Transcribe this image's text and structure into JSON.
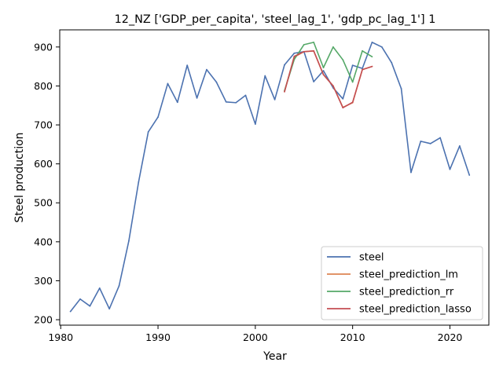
{
  "chart_data": {
    "type": "line",
    "title": "12_NZ ['GDP_per_capita', 'steel_lag_1', 'gdp_pc_lag_1'] 1",
    "xlabel": "Year",
    "ylabel": "Steel production",
    "xlim": [
      1979.9,
      2024.0
    ],
    "ylim": [
      186,
      944
    ],
    "xticks": [
      1980,
      1990,
      2000,
      2010,
      2020
    ],
    "yticks": [
      200,
      300,
      400,
      500,
      600,
      700,
      800,
      900
    ],
    "grid": false,
    "legend_position": "lower-right",
    "series": [
      {
        "name": "steel",
        "color": "#4c72b0",
        "x": [
          1981,
          1982,
          1983,
          1984,
          1985,
          1986,
          1987,
          1988,
          1989,
          1990,
          1991,
          1992,
          1993,
          1994,
          1995,
          1996,
          1997,
          1998,
          1999,
          2000,
          2001,
          2002,
          2003,
          2004,
          2005,
          2006,
          2007,
          2008,
          2009,
          2010,
          2011,
          2012,
          2013,
          2014,
          2015,
          2016,
          2017,
          2018,
          2019,
          2020,
          2021,
          2022
        ],
        "y": [
          221,
          253,
          235,
          281,
          228,
          287,
          402,
          553,
          682,
          720,
          806,
          758,
          853,
          769,
          842,
          810,
          759,
          757,
          776,
          702,
          826,
          765,
          854,
          884,
          888,
          811,
          839,
          795,
          767,
          853,
          845,
          912,
          900,
          860,
          793,
          578,
          658,
          652,
          667,
          586,
          646,
          571
        ]
      },
      {
        "name": "steel_prediction_lm",
        "color": "#dd8452",
        "x": [
          2003,
          2004,
          2005,
          2006,
          2007,
          2008,
          2009,
          2010,
          2011,
          2012
        ],
        "y": [
          786,
          874,
          888,
          890,
          829,
          800,
          745,
          757,
          842,
          850
        ]
      },
      {
        "name": "steel_prediction_rr",
        "color": "#55a868",
        "x": [
          2003,
          2004,
          2005,
          2006,
          2007,
          2008,
          2009,
          2010,
          2011,
          2012
        ],
        "y": [
          788,
          868,
          906,
          912,
          847,
          900,
          867,
          810,
          890,
          875
        ]
      },
      {
        "name": "steel_prediction_lasso",
        "color": "#c44e52",
        "x": [
          2003,
          2004,
          2005,
          2006,
          2007,
          2008,
          2009,
          2010,
          2011,
          2012
        ],
        "y": [
          785,
          876,
          888,
          890,
          829,
          800,
          744,
          758,
          842,
          850
        ]
      }
    ]
  }
}
